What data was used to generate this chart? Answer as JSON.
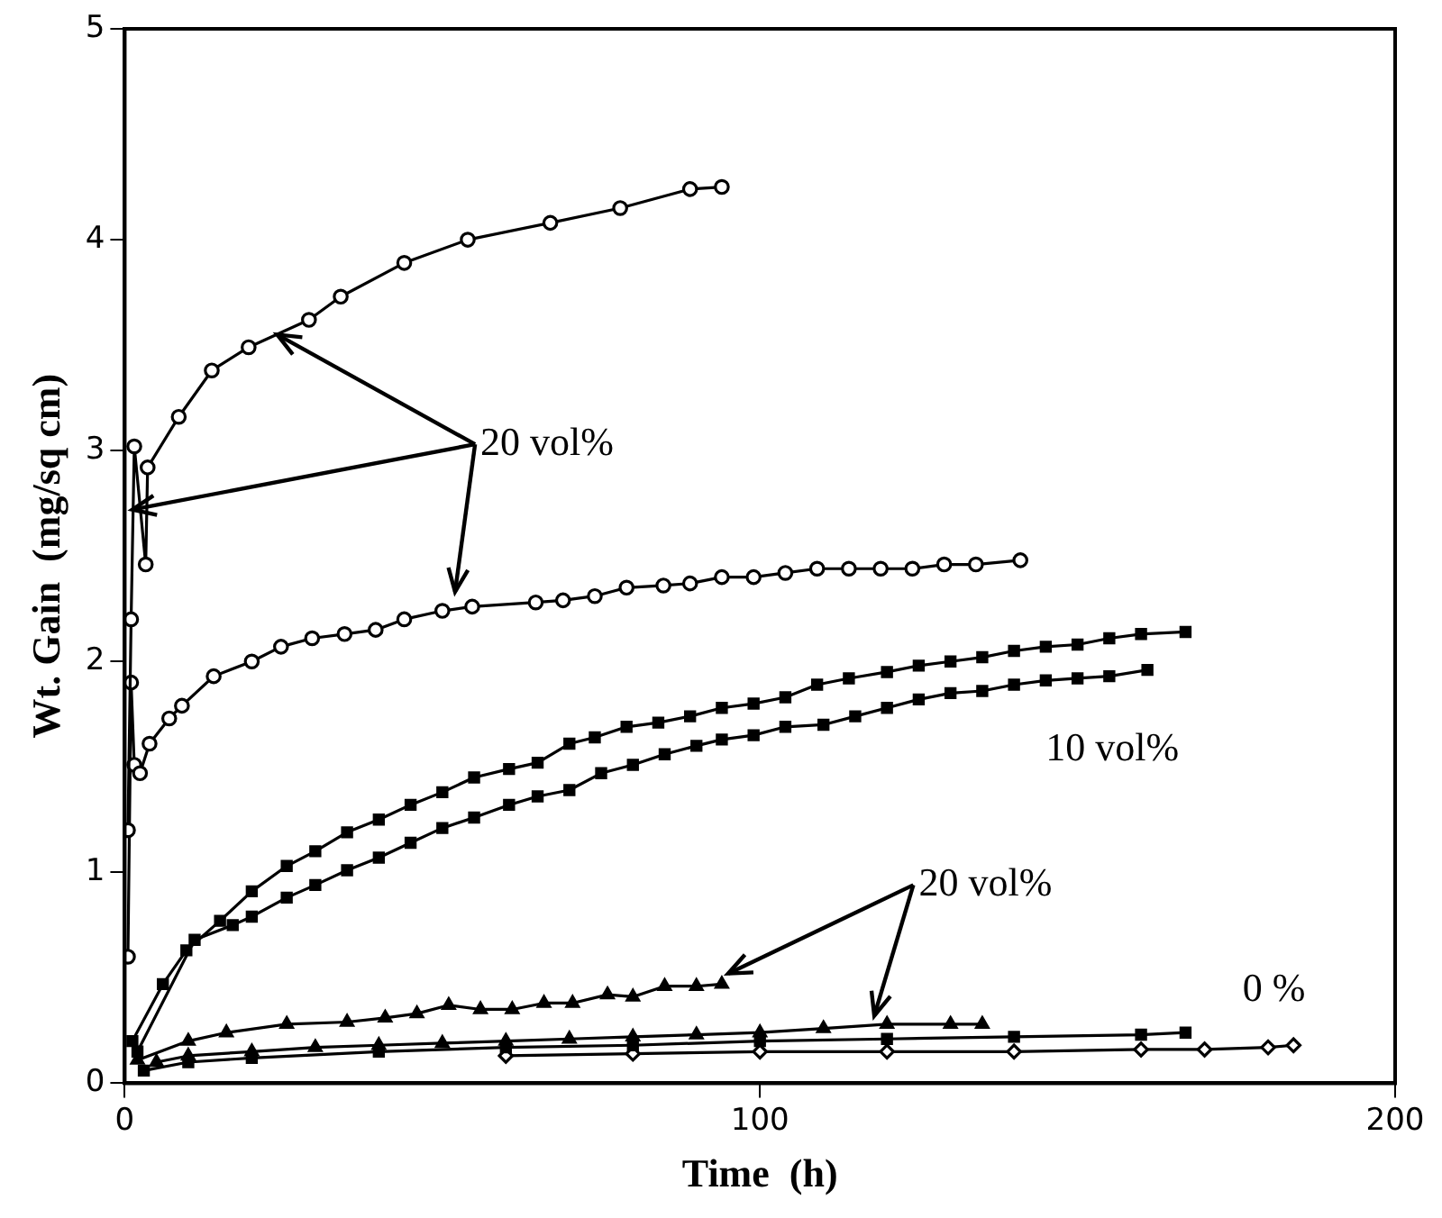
{
  "chart_data": {
    "type": "line",
    "xlabel": "Time  (h)",
    "ylabel": "Wt. Gain  (mg/sq cm)",
    "xlim": [
      0,
      200
    ],
    "ylim": [
      0,
      5
    ],
    "xticks": [
      0,
      100,
      200
    ],
    "yticks": [
      0,
      1,
      2,
      3,
      4,
      5
    ],
    "grid": false,
    "legend": false,
    "line_style": "solid",
    "series": [
      {
        "color": "#000000",
        "marker": "circle",
        "x": [
          0.5,
          1,
          1.5,
          3.3,
          3.6,
          8.5,
          13.7,
          19.5,
          29,
          34,
          44,
          54,
          67,
          78,
          89,
          94
        ],
        "values": [
          1.2,
          2.2,
          3.02,
          2.46,
          2.92,
          3.16,
          3.38,
          3.49,
          3.62,
          3.73,
          3.89,
          4.0,
          4.08,
          4.15,
          4.24,
          4.25
        ]
      },
      {
        "color": "#000000",
        "marker": "circle",
        "x": [
          0.5,
          1,
          1.5,
          2.4,
          3.9,
          7,
          9,
          14,
          20,
          24.6,
          29.5,
          34.6,
          39.5,
          44,
          50,
          54.7,
          64.7,
          69,
          74,
          79,
          84.8,
          89,
          94,
          99,
          104,
          109,
          114,
          119,
          124,
          129,
          134,
          141
        ],
        "values": [
          0.6,
          1.9,
          1.51,
          1.47,
          1.61,
          1.73,
          1.79,
          1.93,
          2.0,
          2.07,
          2.11,
          2.13,
          2.15,
          2.2,
          2.24,
          2.26,
          2.28,
          2.29,
          2.31,
          2.35,
          2.36,
          2.37,
          2.4,
          2.4,
          2.42,
          2.44,
          2.44,
          2.44,
          2.44,
          2.46,
          2.46,
          2.48
        ]
      },
      {
        "color": "#000000",
        "marker": "square",
        "x": [
          1.2,
          6,
          9.7,
          15,
          20,
          25.5,
          30,
          35,
          40,
          45,
          50,
          55,
          60.5,
          65,
          70,
          74,
          79,
          84,
          89,
          94,
          99,
          104,
          109,
          114,
          120,
          125,
          130,
          135,
          140,
          145,
          150,
          155,
          160,
          167
        ],
        "values": [
          0.2,
          0.47,
          0.63,
          0.77,
          0.91,
          1.03,
          1.1,
          1.19,
          1.25,
          1.32,
          1.38,
          1.45,
          1.49,
          1.52,
          1.61,
          1.64,
          1.69,
          1.71,
          1.74,
          1.78,
          1.8,
          1.83,
          1.89,
          1.92,
          1.95,
          1.98,
          2.0,
          2.02,
          2.05,
          2.07,
          2.08,
          2.11,
          2.13,
          2.14
        ]
      },
      {
        "color": "#000000",
        "marker": "square",
        "x": [
          2,
          11,
          17,
          20,
          25.5,
          30,
          35,
          40,
          45,
          50,
          55,
          60.5,
          65,
          70,
          75,
          80,
          85,
          90,
          94,
          99,
          104,
          110,
          115,
          120,
          125,
          130,
          135,
          140,
          145,
          150,
          155,
          161
        ],
        "values": [
          0.15,
          0.68,
          0.75,
          0.79,
          0.88,
          0.94,
          1.01,
          1.07,
          1.14,
          1.21,
          1.26,
          1.32,
          1.36,
          1.39,
          1.47,
          1.51,
          1.56,
          1.6,
          1.63,
          1.65,
          1.69,
          1.7,
          1.74,
          1.78,
          1.82,
          1.85,
          1.86,
          1.89,
          1.91,
          1.92,
          1.93,
          1.96
        ]
      },
      {
        "color": "#000000",
        "marker": "triangle",
        "x": [
          2,
          10,
          16,
          25.5,
          35,
          41,
          46,
          51,
          56,
          61,
          66,
          70.5,
          76,
          80,
          85,
          90,
          94
        ],
        "values": [
          0.11,
          0.2,
          0.24,
          0.28,
          0.29,
          0.31,
          0.33,
          0.37,
          0.35,
          0.35,
          0.38,
          0.38,
          0.42,
          0.41,
          0.46,
          0.46,
          0.47
        ]
      },
      {
        "color": "#000000",
        "marker": "triangle",
        "x": [
          5,
          10,
          20,
          30,
          40,
          50,
          60,
          70,
          80,
          90,
          100,
          110,
          120,
          130,
          135
        ],
        "values": [
          0.1,
          0.13,
          0.15,
          0.17,
          0.18,
          0.19,
          0.2,
          0.21,
          0.22,
          0.23,
          0.24,
          0.26,
          0.28,
          0.28,
          0.28
        ]
      },
      {
        "color": "#000000",
        "marker": "square",
        "x": [
          3,
          10,
          20,
          40,
          60,
          80,
          100,
          120,
          140,
          160,
          167
        ],
        "values": [
          0.06,
          0.1,
          0.12,
          0.15,
          0.17,
          0.18,
          0.2,
          0.21,
          0.22,
          0.23,
          0.24
        ]
      },
      {
        "color": "#000000",
        "marker": "diamond",
        "x": [
          60,
          80,
          100,
          120,
          140,
          160,
          170,
          180,
          184
        ],
        "values": [
          0.13,
          0.14,
          0.15,
          0.15,
          0.15,
          0.16,
          0.16,
          0.17,
          0.18
        ]
      }
    ],
    "annotations": [
      {
        "text": "20 vol%",
        "x": 24,
        "y": 3.55
      },
      "10 vol%",
      {
        "text": "20 vol%",
        "x": 95,
        "y": 0.52
      },
      "0 %"
    ]
  }
}
